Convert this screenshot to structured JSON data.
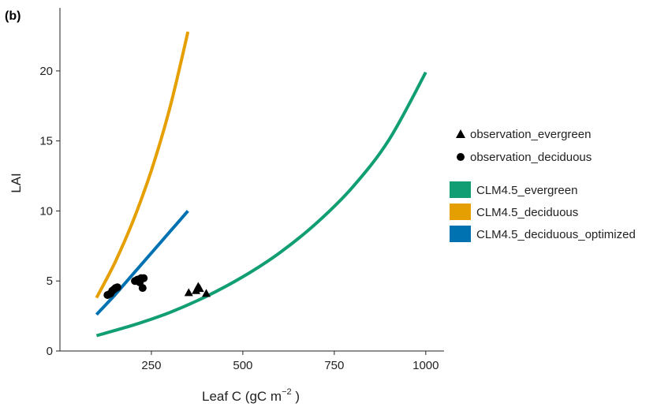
{
  "chart_data": {
    "type": "line",
    "panel_label": "(b)",
    "xlabel_main": "Leaf C (gC m",
    "xlabel_sup": "−2",
    "xlabel_close": " )",
    "ylabel": "LAI",
    "xlim": [
      0,
      1050
    ],
    "ylim": [
      0,
      24.5
    ],
    "xticks": [
      250,
      500,
      750,
      1000
    ],
    "yticks": [
      0,
      5,
      10,
      15,
      20
    ],
    "series": [
      {
        "name": "CLM4.5_evergreen",
        "kind": "curve",
        "color": "#129e73",
        "x": [
          100,
          200,
          300,
          400,
          500,
          600,
          700,
          800,
          900,
          1000
        ],
        "y": [
          1.1,
          1.85,
          2.75,
          3.9,
          5.3,
          7.0,
          9.1,
          11.7,
          15.1,
          19.9
        ]
      },
      {
        "name": "CLM4.5_deciduous",
        "kind": "curve",
        "color": "#e69f00",
        "x": [
          100,
          150,
          200,
          250,
          300,
          350
        ],
        "y": [
          3.8,
          6.3,
          9.3,
          12.9,
          17.3,
          22.8
        ]
      },
      {
        "name": "CLM4.5_deciduous_optimized",
        "kind": "curve",
        "color": "#0072b2",
        "x": [
          100,
          150,
          200,
          250,
          300,
          350
        ],
        "y": [
          2.6,
          4.0,
          5.5,
          7.0,
          8.5,
          10.0
        ]
      },
      {
        "name": "observation_evergreen",
        "kind": "scatter",
        "marker": "triangle",
        "color": "#000000",
        "x": [
          352,
          372,
          378,
          382,
          400
        ],
        "y": [
          4.2,
          4.35,
          4.65,
          4.5,
          4.15
        ]
      },
      {
        "name": "observation_deciduous",
        "kind": "scatter",
        "marker": "circle",
        "color": "#000000",
        "x": [
          130,
          138,
          143,
          148,
          152,
          157,
          205,
          212,
          218,
          222,
          226,
          229
        ],
        "y": [
          4.0,
          4.1,
          4.3,
          4.4,
          4.5,
          4.55,
          5.0,
          5.1,
          4.9,
          5.2,
          4.5,
          5.2
        ]
      }
    ],
    "legend": {
      "placement": "right",
      "markers": [
        "observation_evergreen",
        "observation_deciduous"
      ],
      "lines": [
        "CLM4.5_evergreen",
        "CLM4.5_deciduous",
        "CLM4.5_deciduous_optimized"
      ]
    },
    "grid": false
  }
}
